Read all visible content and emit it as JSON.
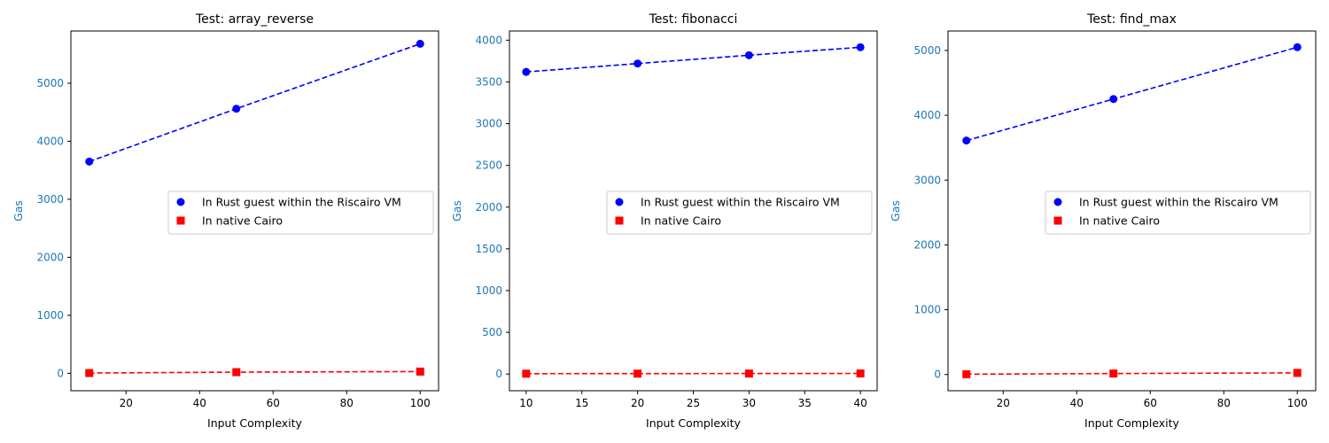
{
  "chart_data": [
    {
      "type": "line",
      "title": "Test: array_reverse",
      "xlabel": "Input Complexity",
      "ylabel": "Gas",
      "x": [
        10,
        50,
        100
      ],
      "xlim": [
        5,
        105
      ],
      "ylim": [
        -300,
        5900
      ],
      "xticks": [
        20,
        40,
        60,
        80,
        100
      ],
      "yticks": [
        0,
        1000,
        2000,
        3000,
        4000,
        5000
      ],
      "legend": "center-right",
      "grid": false,
      "series": [
        {
          "name": "In Rust guest within the Riscairo VM",
          "values": [
            3650,
            4560,
            5680
          ],
          "color": "#0000ff",
          "marker": "circle",
          "linestyle": "dashed"
        },
        {
          "name": "In native Cairo",
          "values": [
            5,
            20,
            30
          ],
          "color": "#ff0000",
          "marker": "square",
          "linestyle": "dashed"
        }
      ]
    },
    {
      "type": "line",
      "title": "Test: fibonacci",
      "xlabel": "Input Complexity",
      "ylabel": "Gas",
      "x": [
        10,
        20,
        30,
        40
      ],
      "xlim": [
        8.5,
        41.5
      ],
      "ylim": [
        -200,
        4110
      ],
      "xticks": [
        10,
        15,
        20,
        25,
        30,
        35,
        40
      ],
      "yticks": [
        0,
        500,
        1000,
        1500,
        2000,
        2500,
        3000,
        3500,
        4000
      ],
      "legend": "center-right",
      "grid": false,
      "series": [
        {
          "name": "In Rust guest within the Riscairo VM",
          "values": [
            3620,
            3720,
            3820,
            3915
          ],
          "color": "#0000ff",
          "marker": "circle",
          "linestyle": "dashed"
        },
        {
          "name": "In native Cairo",
          "values": [
            4,
            5,
            6,
            7
          ],
          "color": "#ff0000",
          "marker": "square",
          "linestyle": "dashed"
        }
      ]
    },
    {
      "type": "line",
      "title": "Test: find_max",
      "xlabel": "Input Complexity",
      "ylabel": "Gas",
      "x": [
        10,
        50,
        100
      ],
      "xlim": [
        5,
        105
      ],
      "ylim": [
        -250,
        5300
      ],
      "xticks": [
        20,
        40,
        60,
        80,
        100
      ],
      "yticks": [
        0,
        1000,
        2000,
        3000,
        4000,
        5000
      ],
      "legend": "center-right",
      "grid": false,
      "series": [
        {
          "name": "In Rust guest within the Riscairo VM",
          "values": [
            3610,
            4250,
            5050
          ],
          "color": "#0000ff",
          "marker": "circle",
          "linestyle": "dashed"
        },
        {
          "name": "In native Cairo",
          "values": [
            5,
            15,
            25
          ],
          "color": "#ff0000",
          "marker": "square",
          "linestyle": "dashed"
        }
      ]
    }
  ]
}
